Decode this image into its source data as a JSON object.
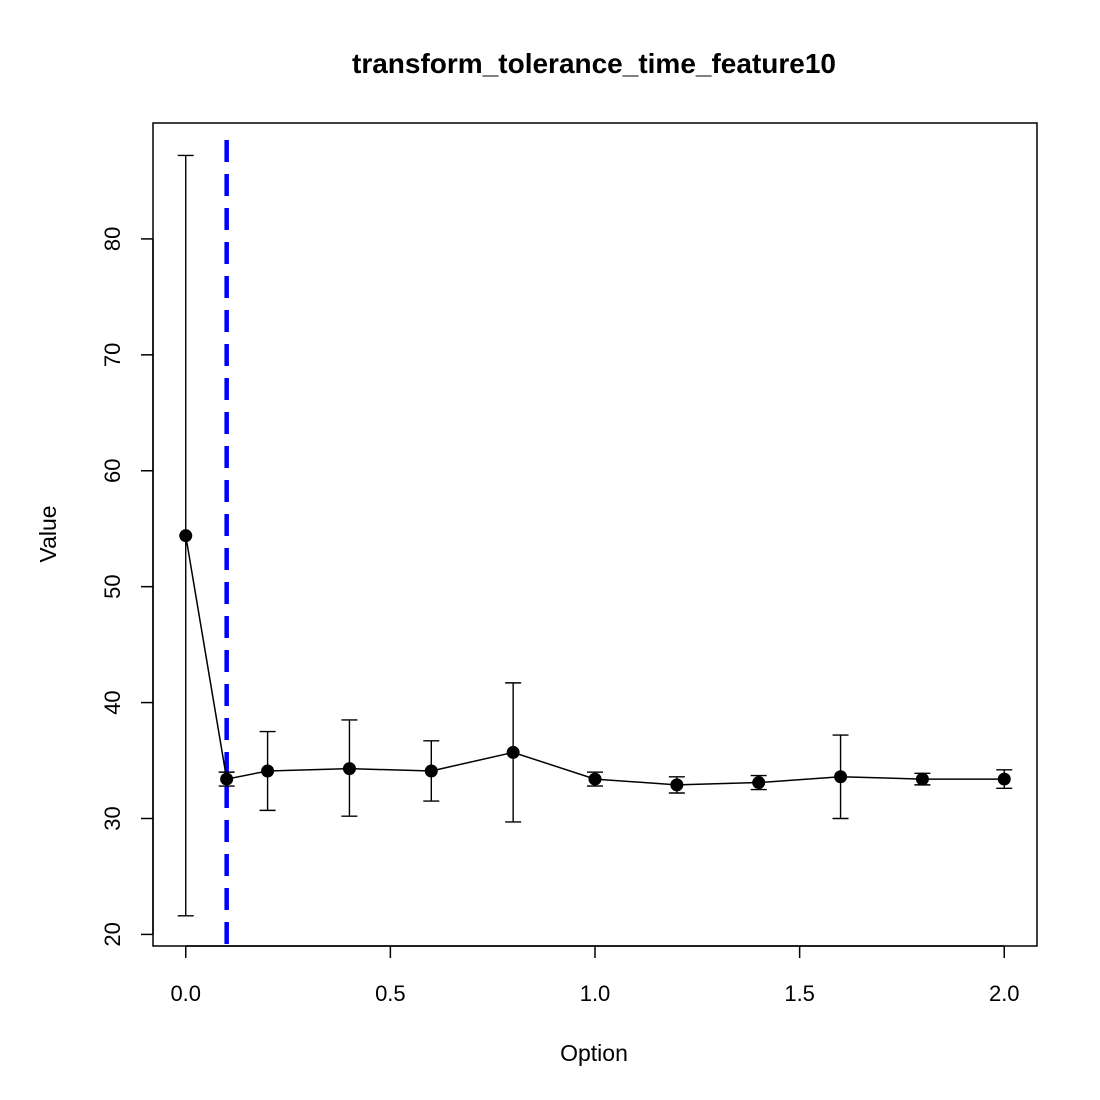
{
  "chart_data": {
    "type": "line",
    "title": "transform_tolerance_time_feature10",
    "xlabel": "Option",
    "ylabel": "Value",
    "xlim": [
      -0.08,
      2.08
    ],
    "ylim": [
      19,
      90
    ],
    "xticks": [
      0.0,
      0.5,
      1.0,
      1.5,
      2.0
    ],
    "xtick_labels": [
      "0.0",
      "0.5",
      "1.0",
      "1.5",
      "2.0"
    ],
    "yticks": [
      20,
      30,
      40,
      50,
      60,
      70,
      80
    ],
    "ytick_labels": [
      "20",
      "30",
      "40",
      "50",
      "60",
      "70",
      "80"
    ],
    "grid": false,
    "series": [
      {
        "x": [
          0.0,
          0.1,
          0.2,
          0.4,
          0.6,
          0.8,
          1.0,
          1.2,
          1.4,
          1.6,
          1.8,
          2.0
        ],
        "y": [
          54.4,
          33.4,
          34.1,
          34.3,
          34.1,
          35.7,
          33.4,
          32.9,
          33.1,
          33.6,
          33.4,
          33.4
        ],
        "err_low": [
          21.6,
          32.8,
          30.7,
          30.2,
          31.5,
          29.7,
          32.8,
          32.2,
          32.5,
          30.0,
          32.9,
          32.6
        ],
        "err_high": [
          87.2,
          34.0,
          37.5,
          38.5,
          36.7,
          41.7,
          34.0,
          33.6,
          33.7,
          37.2,
          33.9,
          34.2
        ],
        "color": "#000000"
      }
    ],
    "reference_line": {
      "x": 0.1,
      "color": "#0000ff",
      "style": "dashed"
    }
  }
}
